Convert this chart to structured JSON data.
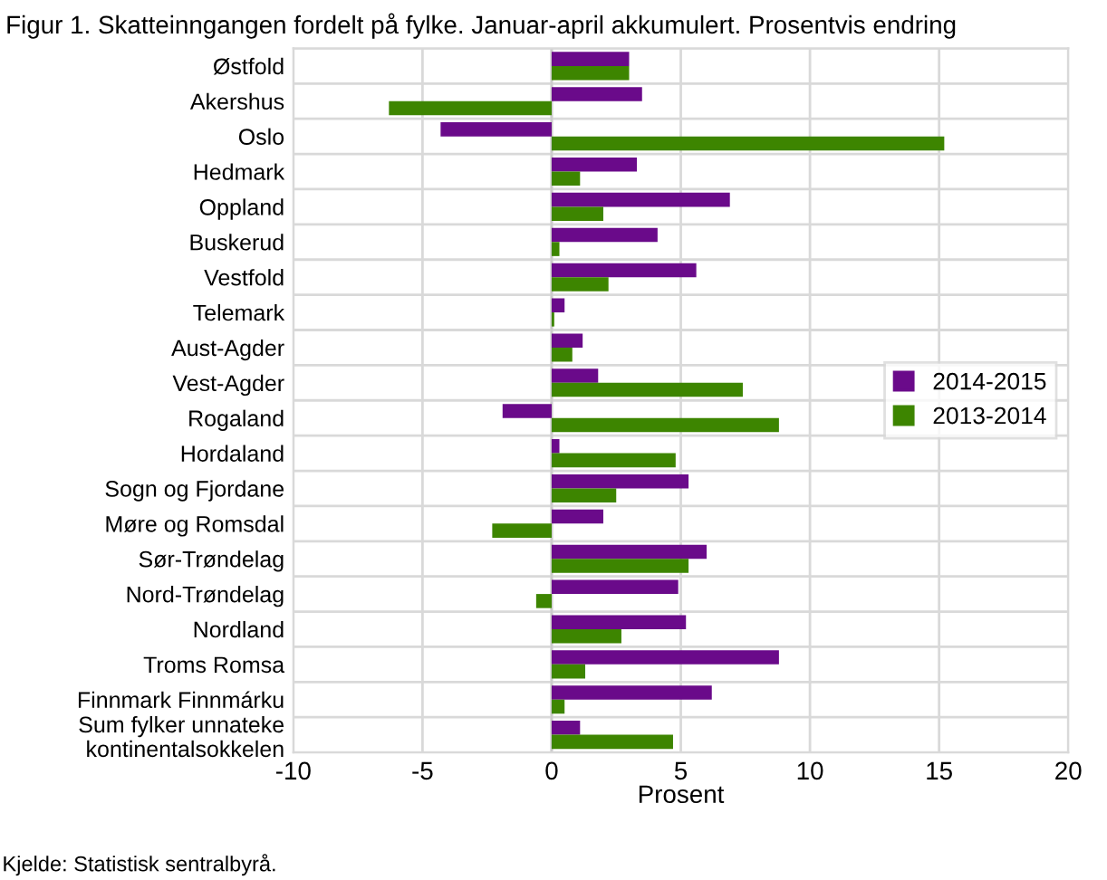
{
  "chart_data": {
    "type": "bar",
    "orientation": "horizontal",
    "title": "Figur 1. Skatteinngangen fordelt på fylke. Januar-april akkumulert. Prosentvis endring",
    "xlabel": "Prosent",
    "annotations": [
      "Kjelde: Statistisk sentralbyrå."
    ],
    "categories": [
      "Østfold",
      "Akershus",
      "Oslo",
      "Hedmark",
      "Oppland",
      "Buskerud",
      "Vestfold",
      "Telemark",
      "Aust-Agder",
      "Vest-Agder",
      "Rogaland",
      "Hordaland",
      "Sogn og Fjordane",
      "Møre og Romsdal",
      "Sør-Trøndelag",
      "Nord-Trøndelag",
      "Nordland",
      "Troms Romsa",
      "Finnmark Finnmárku",
      "Sum fylker unnateke\nkontinentalsokkelen"
    ],
    "series": [
      {
        "name": "2014-2015",
        "color": "#6a0a8a",
        "values": [
          3.0,
          3.5,
          -4.3,
          3.3,
          6.9,
          4.1,
          5.6,
          0.5,
          1.2,
          1.8,
          -1.9,
          0.3,
          5.3,
          2.0,
          6.0,
          4.9,
          5.2,
          8.8,
          6.2,
          1.1
        ]
      },
      {
        "name": "2013-2014",
        "color": "#3d8500",
        "values": [
          3.0,
          -6.3,
          15.2,
          1.1,
          2.0,
          0.3,
          2.2,
          0.1,
          0.8,
          7.4,
          8.8,
          4.8,
          2.5,
          -2.3,
          5.3,
          -0.6,
          2.7,
          1.3,
          0.5,
          4.7
        ]
      }
    ],
    "xlim": [
      -10,
      20
    ],
    "xticks": [
      -10,
      -5,
      0,
      5,
      10,
      15,
      20
    ],
    "grid": true,
    "legend": "right"
  }
}
